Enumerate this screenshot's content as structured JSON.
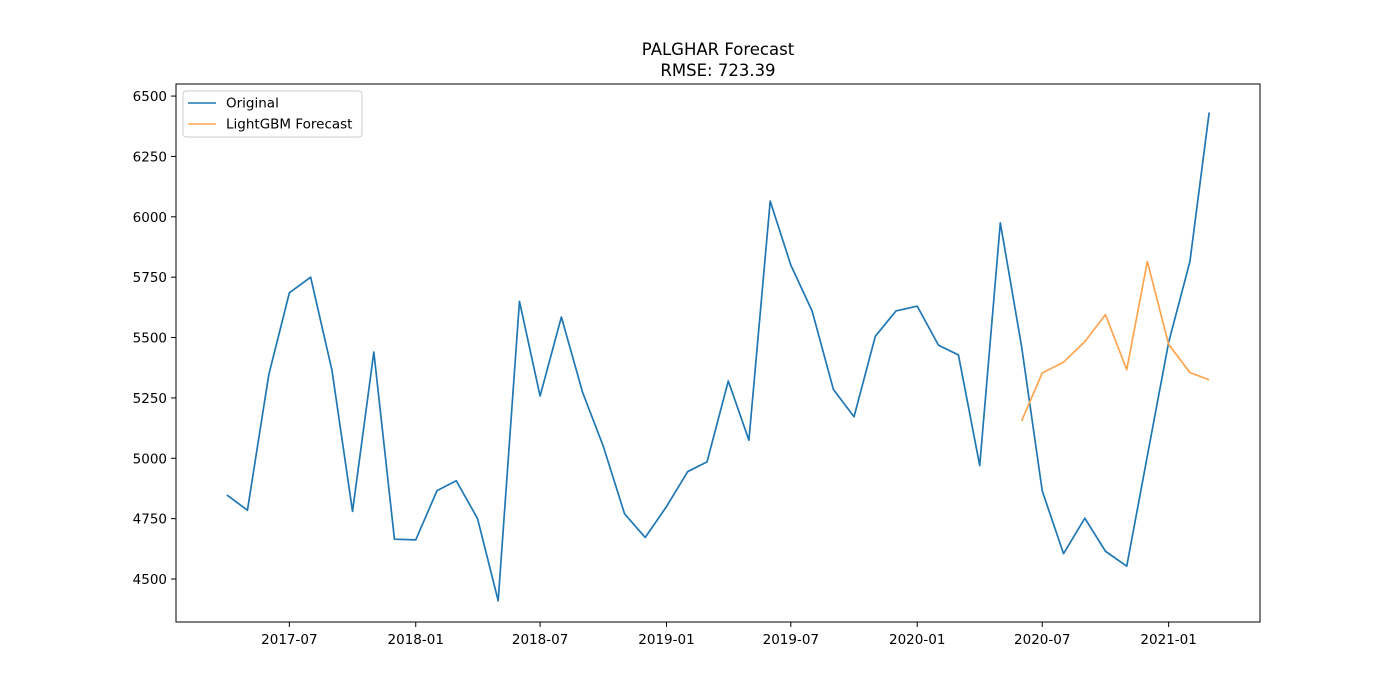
{
  "chart_data": {
    "type": "line",
    "title": "PALGHAR Forecast",
    "subtitle": "RMSE: 723.39",
    "xlabel": "",
    "ylabel": "",
    "x_range": [
      "2017-01-17",
      "2021-05-14"
    ],
    "ylim": [
      4322,
      6550
    ],
    "x_ticks": [
      "2017-07",
      "2018-01",
      "2018-07",
      "2019-01",
      "2019-07",
      "2020-01",
      "2020-07",
      "2021-01"
    ],
    "y_ticks": [
      4500,
      4750,
      5000,
      5250,
      5500,
      5750,
      6000,
      6250,
      6500
    ],
    "grid": false,
    "legend_position": "top-left",
    "series": [
      {
        "name": "Original",
        "color": "#1f77b4",
        "x": [
          "2017-04",
          "2017-05",
          "2017-06",
          "2017-07",
          "2017-08",
          "2017-09",
          "2017-10",
          "2017-11",
          "2017-12",
          "2018-01",
          "2018-02",
          "2018-03",
          "2018-04",
          "2018-05",
          "2018-06",
          "2018-07",
          "2018-08",
          "2018-09",
          "2018-10",
          "2018-11",
          "2018-12",
          "2019-01",
          "2019-02",
          "2019-03",
          "2019-04",
          "2019-05",
          "2019-06",
          "2019-07",
          "2019-08",
          "2019-09",
          "2019-10",
          "2019-11",
          "2019-12",
          "2020-01",
          "2020-02",
          "2020-03",
          "2020-04",
          "2020-05",
          "2020-06",
          "2020-07",
          "2020-08",
          "2020-09",
          "2020-10",
          "2020-11",
          "2020-12",
          "2021-01",
          "2021-02",
          "2021-03"
        ],
        "values": [
          4848,
          4785,
          5345,
          5685,
          5750,
          5365,
          4780,
          5440,
          4665,
          4662,
          4866,
          4907,
          4750,
          4410,
          5650,
          5258,
          5585,
          5272,
          5050,
          4770,
          4672,
          4800,
          4945,
          4985,
          5320,
          5075,
          6065,
          5800,
          5610,
          5285,
          5172,
          5505,
          5610,
          5630,
          5468,
          5428,
          4970,
          5975,
          5462,
          4865,
          4605,
          4752,
          4615,
          4553,
          5010,
          5480,
          5815,
          6432
        ]
      },
      {
        "name": "LightGBM Forecast",
        "color": "#ffa54f",
        "x": [
          "2020-06",
          "2020-07",
          "2020-08",
          "2020-09",
          "2020-10",
          "2020-11",
          "2020-12",
          "2021-01",
          "2021-02",
          "2021-03"
        ],
        "values": [
          5155,
          5353,
          5398,
          5483,
          5595,
          5367,
          5815,
          5472,
          5355,
          5325
        ]
      }
    ]
  }
}
